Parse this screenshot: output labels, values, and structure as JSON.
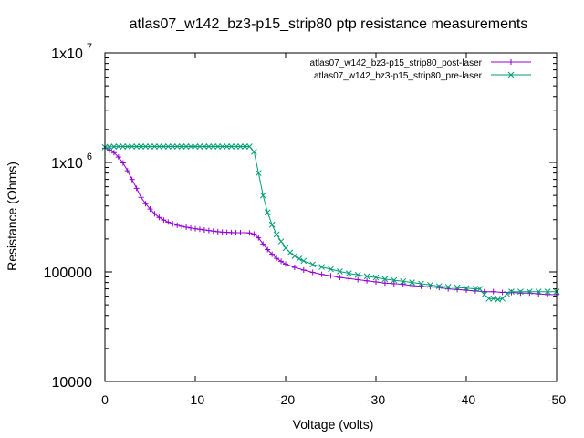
{
  "chart_data": {
    "type": "line",
    "title": "atlas07_w142_bz3-p15_strip80 ptp resistance measurements",
    "xlabel": "Voltage (volts)",
    "ylabel": "Resistance (Ohms)",
    "xlim": [
      0,
      -50
    ],
    "ylim": [
      10000,
      10000000
    ],
    "y_scale": "log",
    "grid": false,
    "legend_position": "top-right",
    "x_ticks": [
      {
        "value": 0,
        "label": "0"
      },
      {
        "value": -10,
        "label": "-10"
      },
      {
        "value": -20,
        "label": "-20"
      },
      {
        "value": -30,
        "label": "-30"
      },
      {
        "value": -40,
        "label": "-40"
      },
      {
        "value": -50,
        "label": "-50"
      }
    ],
    "y_ticks": [
      {
        "value": 10000,
        "label": "10000",
        "sup": ""
      },
      {
        "value": 100000,
        "label": "100000",
        "sup": ""
      },
      {
        "value": 1000000,
        "label": "1x10",
        "sup": "6"
      },
      {
        "value": 10000000,
        "label": "1x10",
        "sup": "7"
      }
    ],
    "series": [
      {
        "name": "atlas07_w142_bz3-p15_strip80_post-laser",
        "color": "#9400d3",
        "marker": "plus",
        "points": [
          [
            0,
            1350000
          ],
          [
            -0.5,
            1300000
          ],
          [
            -1,
            1230000
          ],
          [
            -1.5,
            1120000
          ],
          [
            -2,
            990000
          ],
          [
            -2.5,
            840000
          ],
          [
            -3,
            700000
          ],
          [
            -3.5,
            580000
          ],
          [
            -4,
            480000
          ],
          [
            -4.5,
            420000
          ],
          [
            -5,
            375000
          ],
          [
            -5.5,
            340000
          ],
          [
            -6,
            315000
          ],
          [
            -6.5,
            298000
          ],
          [
            -7,
            285000
          ],
          [
            -7.5,
            275000
          ],
          [
            -8,
            267000
          ],
          [
            -8.5,
            261000
          ],
          [
            -9,
            256000
          ],
          [
            -9.5,
            252000
          ],
          [
            -10,
            248000
          ],
          [
            -10.5,
            245000
          ],
          [
            -11,
            242000
          ],
          [
            -11.5,
            239000
          ],
          [
            -12,
            236000
          ],
          [
            -12.5,
            233000
          ],
          [
            -13,
            231000
          ],
          [
            -13.5,
            230000
          ],
          [
            -14,
            229000
          ],
          [
            -14.5,
            228000
          ],
          [
            -15,
            228000
          ],
          [
            -15.5,
            228000
          ],
          [
            -16,
            227000
          ],
          [
            -16.5,
            222000
          ],
          [
            -17,
            205000
          ],
          [
            -17.5,
            180000
          ],
          [
            -18,
            160000
          ],
          [
            -18.5,
            145000
          ],
          [
            -19,
            133000
          ],
          [
            -19.5,
            125000
          ],
          [
            -20,
            118000
          ],
          [
            -21,
            110000
          ],
          [
            -22,
            104000
          ],
          [
            -23,
            99000
          ],
          [
            -24,
            95000
          ],
          [
            -25,
            92000
          ],
          [
            -26,
            89000
          ],
          [
            -27,
            87000
          ],
          [
            -28,
            85000
          ],
          [
            -29,
            83000
          ],
          [
            -30,
            81000
          ],
          [
            -31,
            79000
          ],
          [
            -32,
            78000
          ],
          [
            -33,
            77000
          ],
          [
            -34,
            75000
          ],
          [
            -35,
            74000
          ],
          [
            -36,
            73000
          ],
          [
            -37,
            72000
          ],
          [
            -38,
            70000
          ],
          [
            -39,
            69000
          ],
          [
            -40,
            68000
          ],
          [
            -41,
            67000
          ],
          [
            -42,
            66000
          ],
          [
            -43,
            66000
          ],
          [
            -44,
            65000
          ],
          [
            -45,
            65000
          ],
          [
            -46,
            64000
          ],
          [
            -47,
            64000
          ],
          [
            -48,
            63000
          ],
          [
            -49,
            62000
          ],
          [
            -50,
            62000
          ]
        ]
      },
      {
        "name": "atlas07_w142_bz3-p15_strip80_pre-laser",
        "color": "#009e73",
        "marker": "cross",
        "points": [
          [
            0,
            1380000
          ],
          [
            -0.5,
            1390000
          ],
          [
            -1,
            1395000
          ],
          [
            -1.5,
            1400000
          ],
          [
            -2,
            1400000
          ],
          [
            -2.5,
            1400000
          ],
          [
            -3,
            1400000
          ],
          [
            -3.5,
            1400000
          ],
          [
            -4,
            1400000
          ],
          [
            -4.5,
            1400000
          ],
          [
            -5,
            1400000
          ],
          [
            -5.5,
            1400000
          ],
          [
            -6,
            1400000
          ],
          [
            -6.5,
            1400000
          ],
          [
            -7,
            1400000
          ],
          [
            -7.5,
            1400000
          ],
          [
            -8,
            1400000
          ],
          [
            -8.5,
            1400000
          ],
          [
            -9,
            1400000
          ],
          [
            -9.5,
            1400000
          ],
          [
            -10,
            1400000
          ],
          [
            -10.5,
            1400000
          ],
          [
            -11,
            1400000
          ],
          [
            -11.5,
            1400000
          ],
          [
            -12,
            1400000
          ],
          [
            -12.5,
            1400000
          ],
          [
            -13,
            1400000
          ],
          [
            -13.5,
            1400000
          ],
          [
            -14,
            1400000
          ],
          [
            -14.5,
            1400000
          ],
          [
            -15,
            1400000
          ],
          [
            -15.5,
            1400000
          ],
          [
            -16,
            1400000
          ],
          [
            -16.5,
            1250000
          ],
          [
            -17,
            800000
          ],
          [
            -17.5,
            500000
          ],
          [
            -18,
            350000
          ],
          [
            -18.5,
            270000
          ],
          [
            -19,
            220000
          ],
          [
            -19.5,
            190000
          ],
          [
            -20,
            165000
          ],
          [
            -20.5,
            150000
          ],
          [
            -21,
            140000
          ],
          [
            -21.5,
            132000
          ],
          [
            -22,
            126000
          ],
          [
            -23,
            117000
          ],
          [
            -24,
            111000
          ],
          [
            -25,
            106000
          ],
          [
            -26,
            101000
          ],
          [
            -27,
            97000
          ],
          [
            -28,
            94000
          ],
          [
            -29,
            91000
          ],
          [
            -30,
            89000
          ],
          [
            -31,
            86000
          ],
          [
            -32,
            84000
          ],
          [
            -33,
            82000
          ],
          [
            -34,
            80000
          ],
          [
            -35,
            78000
          ],
          [
            -36,
            76000
          ],
          [
            -37,
            74000
          ],
          [
            -38,
            73000
          ],
          [
            -39,
            72000
          ],
          [
            -40,
            71000
          ],
          [
            -41,
            70000
          ],
          [
            -41.5,
            70000
          ],
          [
            -42,
            62000
          ],
          [
            -42.5,
            57000
          ],
          [
            -43,
            57000
          ],
          [
            -43.5,
            56000
          ],
          [
            -44,
            57000
          ],
          [
            -44.5,
            63000
          ],
          [
            -45,
            66000
          ],
          [
            -46,
            66000
          ],
          [
            -47,
            66000
          ],
          [
            -48,
            66000
          ],
          [
            -49,
            66000
          ],
          [
            -50,
            66000
          ]
        ]
      }
    ]
  }
}
